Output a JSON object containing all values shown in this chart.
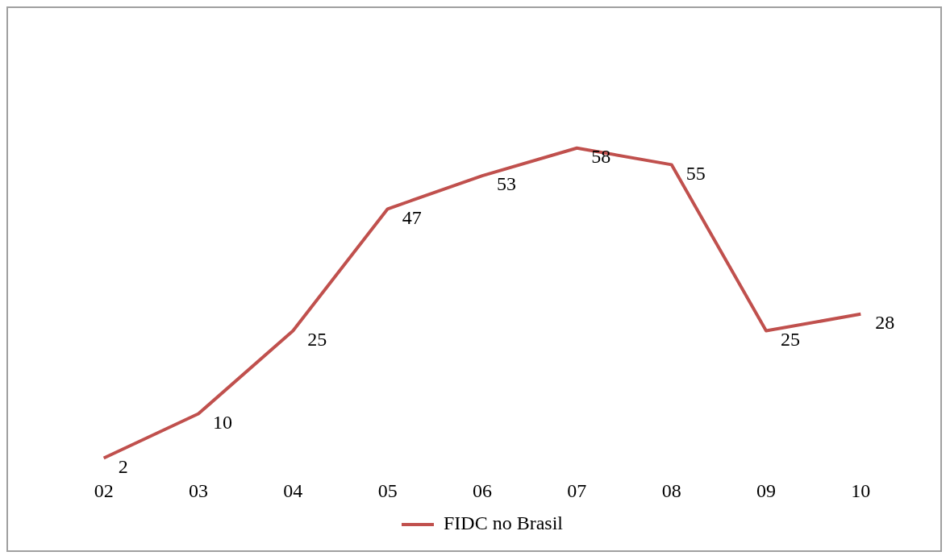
{
  "chart_data": {
    "type": "line",
    "categories": [
      "02",
      "03",
      "04",
      "05",
      "06",
      "07",
      "08",
      "09",
      "10"
    ],
    "series": [
      {
        "name": "FIDC no Brasil",
        "color": "#c0504d",
        "values": [
          2,
          10,
          25,
          47,
          53,
          58,
          55,
          25,
          28
        ]
      }
    ],
    "tick_labels": "x",
    "grid": false,
    "legend": "bottom",
    "data_labels": true,
    "marker": "none",
    "line_style": "solid"
  }
}
